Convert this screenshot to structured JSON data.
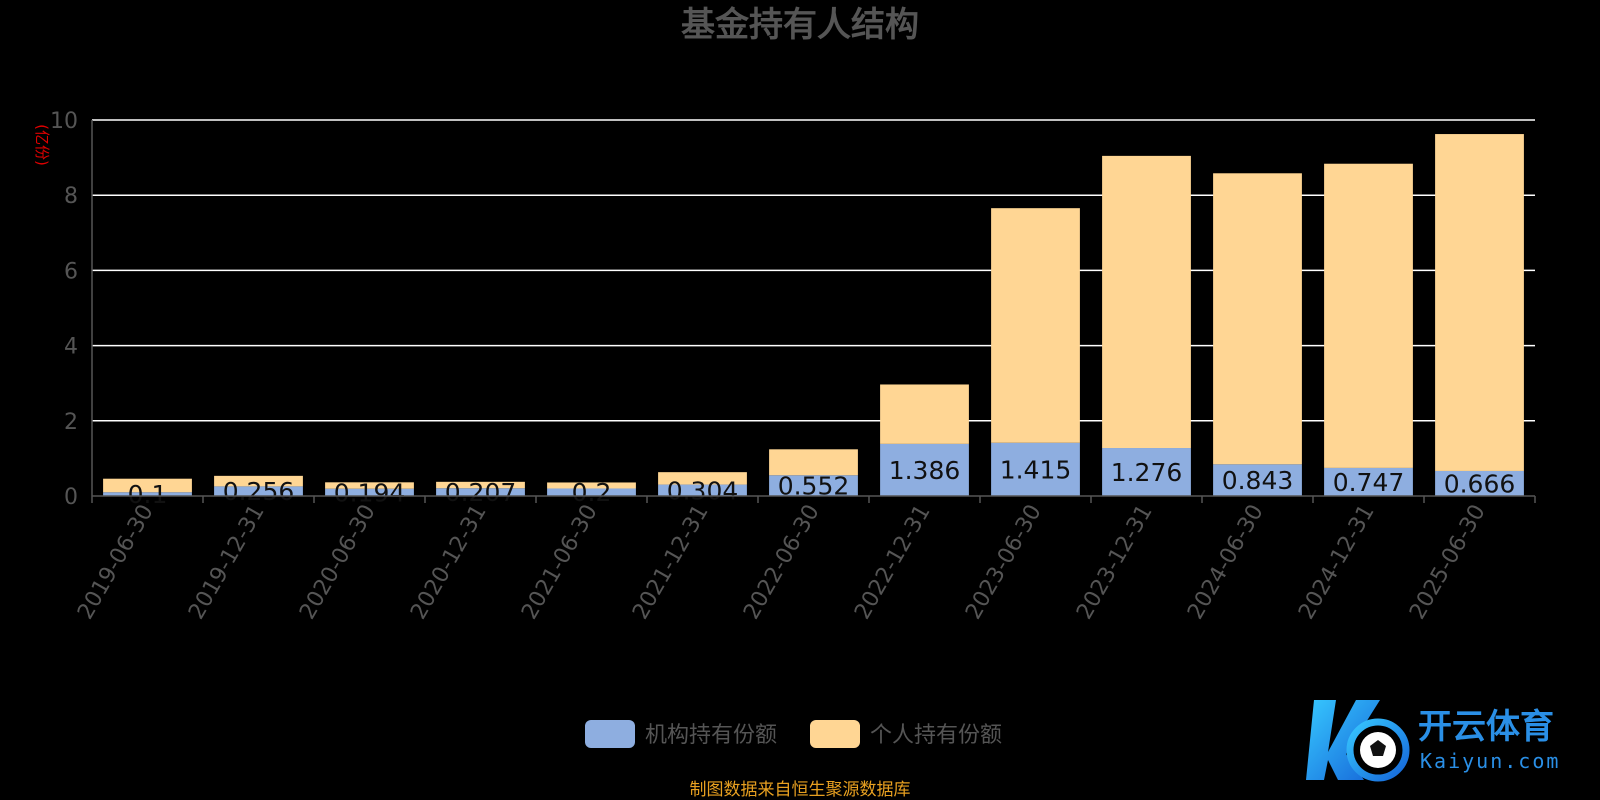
{
  "chart_data": {
    "type": "bar",
    "stacked": true,
    "title": "基金持有人结构",
    "ylabel": "(亿份)",
    "ylim": [
      0,
      10
    ],
    "yticks": [
      "0",
      "2",
      "4",
      "6",
      "8",
      "10"
    ],
    "grid": true,
    "legend_position": "bottom-center",
    "categories": [
      "2019-06-30",
      "2019-12-31",
      "2020-06-30",
      "2020-12-31",
      "2021-06-30",
      "2021-12-31",
      "2022-06-30",
      "2022-12-31",
      "2023-06-30",
      "2023-12-31",
      "2024-06-30",
      "2024-12-31",
      "2025-06-30"
    ],
    "series": [
      {
        "name": "机构持有份额",
        "color": "#8eaee0",
        "values": [
          0.1,
          0.256,
          0.194,
          0.207,
          0.2,
          0.304,
          0.552,
          1.386,
          1.415,
          1.276,
          0.843,
          0.747,
          0.666
        ],
        "labels": [
          "0.1",
          "0.256",
          "0.194",
          "0.207",
          "0.2",
          "0.304",
          "0.552",
          "1.386",
          "1.415",
          "1.276",
          "0.843",
          "0.747",
          "0.666"
        ]
      },
      {
        "name": "个人持有份额",
        "color": "#ffd694",
        "values": [
          0.36,
          0.28,
          0.17,
          0.17,
          0.16,
          0.33,
          0.69,
          1.58,
          6.24,
          7.77,
          7.74,
          8.09,
          8.96
        ]
      }
    ],
    "source_note": "制图数据来自恒生聚源数据库"
  },
  "watermark": {
    "brand_text": "开云体育",
    "domain_text": "Kaiyun.com"
  },
  "colors": {
    "title": "#555555",
    "axis_text": "#555555",
    "ylabel": "#e00000",
    "grid": "#ffffff",
    "source_note": "#e8a020",
    "bar_label": "#111111",
    "logo": "#2a8fe6"
  }
}
